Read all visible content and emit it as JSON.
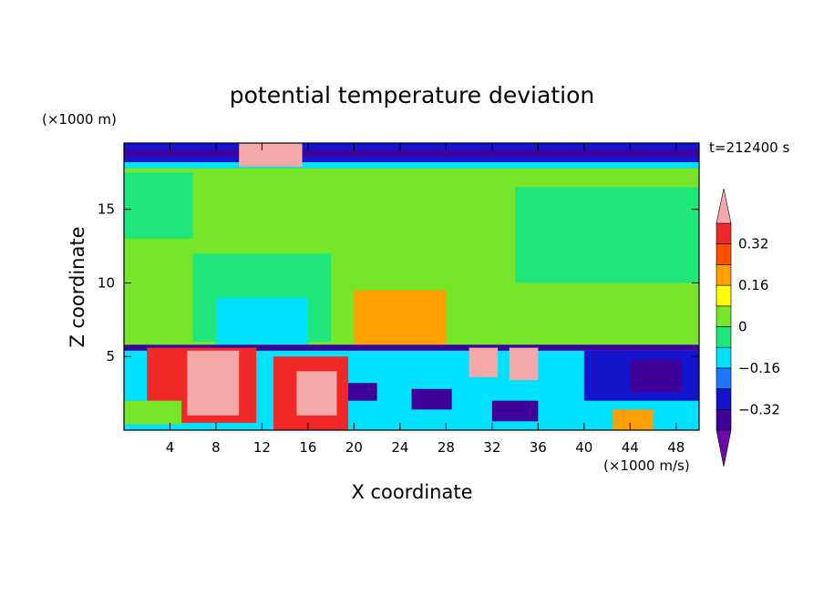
{
  "chart_data": {
    "type": "heatmap",
    "title": "potential temperature deviation",
    "xlabel": "X coordinate",
    "ylabel": "Z coordinate",
    "x_unit": "(×1000 m/s)",
    "y_unit": "(×1000 m)",
    "time_label": "t=212400 s",
    "xlim": [
      0,
      50
    ],
    "ylim": [
      0,
      19.5
    ],
    "x_ticks": [
      4,
      8,
      12,
      16,
      20,
      24,
      28,
      32,
      36,
      40,
      44,
      48
    ],
    "y_ticks": [
      5,
      10,
      15
    ],
    "colorbar": {
      "levels": [
        -0.4,
        -0.32,
        -0.24,
        -0.16,
        -0.08,
        0,
        0.08,
        0.16,
        0.24,
        0.32,
        0.4
      ],
      "tick_labels": [
        {
          "value": 0.32,
          "label": "0.32"
        },
        {
          "value": 0.16,
          "label": "0.16"
        },
        {
          "value": 0,
          "label": "0"
        },
        {
          "value": -0.16,
          "label": "−0.16"
        },
        {
          "value": -0.32,
          "label": "−0.32"
        }
      ],
      "colors": [
        "#6a0aa8",
        "#40009a",
        "#1414cc",
        "#1e78ff",
        "#00e0ff",
        "#1ee67a",
        "#78e628",
        "#ffff00",
        "#ffa000",
        "#ff5000",
        "#f02828",
        "#f4a8a8"
      ],
      "extend": "both"
    },
    "regions": [
      {
        "x0": 0,
        "x1": 50,
        "y0": 0,
        "y1": 19.5,
        "value": 0.03
      },
      {
        "x0": 0,
        "x1": 50,
        "y0": 17.8,
        "y1": 19.5,
        "value": -0.3
      },
      {
        "x0": 0,
        "x1": 50,
        "y0": 18.6,
        "y1": 19.0,
        "value": -0.38
      },
      {
        "x0": 0,
        "x1": 50,
        "y0": 17.8,
        "y1": 18.2,
        "value": -0.12
      },
      {
        "x0": 10,
        "x1": 15.5,
        "y0": 17.9,
        "y1": 19.5,
        "value": 0.45
      },
      {
        "x0": 34,
        "x1": 50,
        "y0": 10,
        "y1": 16.5,
        "value": -0.02
      },
      {
        "x0": 0,
        "x1": 6,
        "y0": 13,
        "y1": 17.5,
        "value": -0.02
      },
      {
        "x0": 6,
        "x1": 18,
        "y0": 6,
        "y1": 12,
        "value": -0.06
      },
      {
        "x0": 8,
        "x1": 16,
        "y0": 5.8,
        "y1": 9,
        "value": -0.12
      },
      {
        "x0": 20,
        "x1": 28,
        "y0": 5.8,
        "y1": 9.5,
        "value": 0.18
      },
      {
        "x0": 21,
        "x1": 26,
        "y0": 6.5,
        "y1": 8.5,
        "value": 0.22
      },
      {
        "x0": 0,
        "x1": 50,
        "y0": 0,
        "y1": 5.8,
        "value": -0.12
      },
      {
        "x0": 0,
        "x1": 50,
        "y0": 5.4,
        "y1": 5.8,
        "value": -0.38
      },
      {
        "x0": 2,
        "x1": 11.5,
        "y0": 0.5,
        "y1": 5.6,
        "value": 0.38
      },
      {
        "x0": 5.5,
        "x1": 10,
        "y0": 1,
        "y1": 5.4,
        "value": 0.45
      },
      {
        "x0": 13,
        "x1": 19.5,
        "y0": 0,
        "y1": 5,
        "value": 0.36
      },
      {
        "x0": 15,
        "x1": 18.5,
        "y0": 1,
        "y1": 4,
        "value": 0.45
      },
      {
        "x0": 19.5,
        "x1": 22,
        "y0": 2,
        "y1": 3.2,
        "value": -0.38
      },
      {
        "x0": 25,
        "x1": 28.5,
        "y0": 1.4,
        "y1": 2.8,
        "value": -0.38
      },
      {
        "x0": 30,
        "x1": 32.5,
        "y0": 3.6,
        "y1": 5.6,
        "value": 0.45
      },
      {
        "x0": 33.5,
        "x1": 36,
        "y0": 3.4,
        "y1": 5.6,
        "value": 0.45
      },
      {
        "x0": 32,
        "x1": 36,
        "y0": 0.6,
        "y1": 2,
        "value": -0.38
      },
      {
        "x0": 40,
        "x1": 50,
        "y0": 2,
        "y1": 5.4,
        "value": -0.3
      },
      {
        "x0": 44,
        "x1": 48.5,
        "y0": 2.6,
        "y1": 4.8,
        "value": -0.38
      },
      {
        "x0": 42.5,
        "x1": 46,
        "y0": 0,
        "y1": 1.4,
        "value": 0.2
      },
      {
        "x0": 0,
        "x1": 5,
        "y0": 0.4,
        "y1": 2,
        "value": 0.05
      }
    ]
  }
}
